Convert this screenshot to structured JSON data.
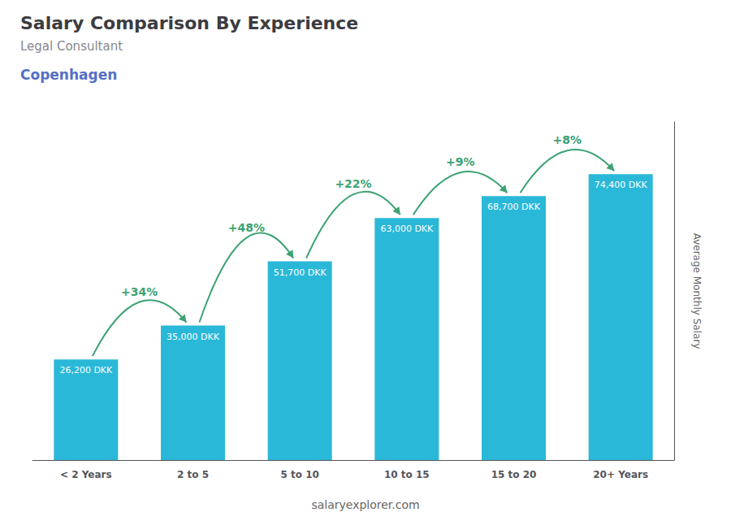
{
  "chart_data": {
    "type": "bar",
    "title": "Salary Comparison By Experience",
    "subtitle": [
      "Legal Consultant",
      "Copenhagen"
    ],
    "categories": [
      "< 2 Years",
      "2 to 5",
      "5 to 10",
      "10 to 15",
      "15 to 20",
      "20+ Years"
    ],
    "values": [
      26200,
      35000,
      51700,
      63000,
      68700,
      74400
    ],
    "value_labels": [
      "26,200 DKK",
      "35,000 DKK",
      "51,700 DKK",
      "63,000 DKK",
      "68,700 DKK",
      "74,400 DKK"
    ],
    "data_labels": true,
    "color": "#2ab8d8",
    "ylabel": "Average Monthly Salary",
    "ylim": [
      0,
      88000
    ],
    "tick_labels": "x",
    "grid": false,
    "annotations": [
      "+34%",
      "+48%",
      "+22%",
      "+9%",
      "+8%"
    ],
    "footer": "salaryexplorer.com"
  }
}
